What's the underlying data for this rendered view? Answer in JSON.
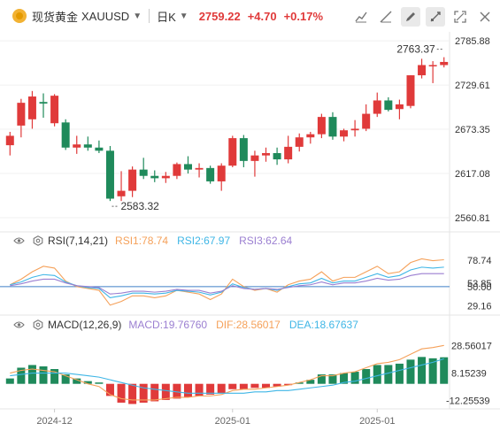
{
  "header": {
    "instrument_name": "现货黄金",
    "symbol": "XAUUSD",
    "period": "日K",
    "last_price": "2759.22",
    "change": "+4.70",
    "change_pct": "+0.17%"
  },
  "toolbar": {
    "icons": [
      "line-tool-icon",
      "chart-type-icon",
      "draw-icon",
      "settings-icon",
      "fullscreen-icon",
      "close-icon"
    ]
  },
  "colors": {
    "up": "#e03a3a",
    "down": "#1f8a5b",
    "rsi1": "#f5a15a",
    "rsi2": "#3fb6e6",
    "rsi3": "#9b7fd1",
    "dif": "#f5a15a",
    "dea": "#3fb6e6"
  },
  "indicators": {
    "rsi": {
      "label": "RSI(7,14,21)",
      "rsi1": "RSI1:78.74",
      "rsi2": "RSI2:67.97",
      "rsi3": "RSI3:62.64"
    },
    "macd": {
      "label": "MACD(12,26,9)",
      "macd": "MACD:19.76760",
      "dif": "DIF:28.56017",
      "dea": "DEA:18.67637"
    }
  },
  "chart_data": [
    {
      "type": "candlestick",
      "title": "XAUUSD",
      "ylim": [
        2545,
        2795
      ],
      "yticks": [
        "2785.88",
        "2729.61",
        "2673.35",
        "2617.08",
        "2560.81"
      ],
      "annotations": {
        "high_label": "2763.37",
        "low_label": "2583.32"
      },
      "xticks": [
        "2024-12",
        "2025-01",
        "2025-01"
      ],
      "candles": [
        {
          "o": 2653,
          "h": 2670,
          "l": 2640,
          "c": 2665
        },
        {
          "o": 2678,
          "h": 2712,
          "l": 2663,
          "c": 2707
        },
        {
          "o": 2686,
          "h": 2722,
          "l": 2674,
          "c": 2715
        },
        {
          "o": 2708,
          "h": 2719,
          "l": 2688,
          "c": 2706
        },
        {
          "o": 2681,
          "h": 2718,
          "l": 2677,
          "c": 2716
        },
        {
          "o": 2682,
          "h": 2686,
          "l": 2647,
          "c": 2650
        },
        {
          "o": 2650,
          "h": 2665,
          "l": 2642,
          "c": 2654
        },
        {
          "o": 2654,
          "h": 2664,
          "l": 2646,
          "c": 2650
        },
        {
          "o": 2650,
          "h": 2659,
          "l": 2643,
          "c": 2646
        },
        {
          "o": 2646,
          "h": 2652,
          "l": 2582,
          "c": 2585
        },
        {
          "o": 2588,
          "h": 2620,
          "l": 2582,
          "c": 2595
        },
        {
          "o": 2595,
          "h": 2626,
          "l": 2587,
          "c": 2622
        },
        {
          "o": 2622,
          "h": 2637,
          "l": 2610,
          "c": 2614
        },
        {
          "o": 2614,
          "h": 2621,
          "l": 2606,
          "c": 2611
        },
        {
          "o": 2611,
          "h": 2619,
          "l": 2605,
          "c": 2614
        },
        {
          "o": 2614,
          "h": 2631,
          "l": 2610,
          "c": 2629
        },
        {
          "o": 2629,
          "h": 2639,
          "l": 2617,
          "c": 2622
        },
        {
          "o": 2622,
          "h": 2630,
          "l": 2612,
          "c": 2624
        },
        {
          "o": 2624,
          "h": 2627,
          "l": 2604,
          "c": 2607
        },
        {
          "o": 2607,
          "h": 2630,
          "l": 2595,
          "c": 2627
        },
        {
          "o": 2627,
          "h": 2665,
          "l": 2625,
          "c": 2662
        },
        {
          "o": 2662,
          "h": 2666,
          "l": 2625,
          "c": 2633
        },
        {
          "o": 2633,
          "h": 2646,
          "l": 2613,
          "c": 2640
        },
        {
          "o": 2640,
          "h": 2650,
          "l": 2632,
          "c": 2643
        },
        {
          "o": 2643,
          "h": 2650,
          "l": 2628,
          "c": 2635
        },
        {
          "o": 2635,
          "h": 2665,
          "l": 2630,
          "c": 2651
        },
        {
          "o": 2651,
          "h": 2668,
          "l": 2645,
          "c": 2663
        },
        {
          "o": 2663,
          "h": 2670,
          "l": 2655,
          "c": 2667
        },
        {
          "o": 2667,
          "h": 2693,
          "l": 2662,
          "c": 2689
        },
        {
          "o": 2689,
          "h": 2695,
          "l": 2660,
          "c": 2664
        },
        {
          "o": 2664,
          "h": 2674,
          "l": 2658,
          "c": 2672
        },
        {
          "o": 2672,
          "h": 2685,
          "l": 2664,
          "c": 2674
        },
        {
          "o": 2674,
          "h": 2705,
          "l": 2671,
          "c": 2693
        },
        {
          "o": 2693,
          "h": 2720,
          "l": 2689,
          "c": 2710
        },
        {
          "o": 2710,
          "h": 2714,
          "l": 2696,
          "c": 2698
        },
        {
          "o": 2699,
          "h": 2711,
          "l": 2686,
          "c": 2705
        },
        {
          "o": 2703,
          "h": 2742,
          "l": 2700,
          "c": 2742
        },
        {
          "o": 2742,
          "h": 2763,
          "l": 2738,
          "c": 2755
        },
        {
          "o": 2755,
          "h": 2760,
          "l": 2732,
          "c": 2755
        },
        {
          "o": 2755,
          "h": 2765,
          "l": 2752,
          "c": 2759
        }
      ]
    },
    {
      "type": "line",
      "title": "RSI(7,14,21)",
      "yticks": [
        "78.74",
        "53.85",
        "50.00",
        "29.16"
      ],
      "ylim": [
        25,
        90
      ],
      "series": [
        {
          "name": "RSI1",
          "values": [
            52,
            58,
            66,
            72,
            70,
            56,
            50,
            48,
            46,
            30,
            34,
            40,
            40,
            38,
            40,
            46,
            44,
            42,
            36,
            42,
            58,
            50,
            46,
            48,
            44,
            52,
            56,
            58,
            66,
            56,
            60,
            60,
            66,
            72,
            64,
            66,
            76,
            80,
            78,
            79
          ]
        },
        {
          "name": "RSI2",
          "values": [
            52,
            55,
            60,
            63,
            62,
            55,
            51,
            49,
            48,
            38,
            40,
            43,
            43,
            42,
            43,
            46,
            45,
            44,
            41,
            44,
            53,
            49,
            47,
            48,
            46,
            50,
            53,
            54,
            59,
            54,
            56,
            56,
            60,
            64,
            60,
            62,
            68,
            71,
            70,
            71
          ]
        },
        {
          "name": "RSI3",
          "values": [
            51,
            53,
            56,
            58,
            58,
            54,
            51,
            50,
            49,
            42,
            43,
            45,
            45,
            44,
            45,
            47,
            46,
            46,
            43,
            45,
            51,
            48,
            47,
            48,
            47,
            49,
            51,
            52,
            55,
            52,
            54,
            54,
            56,
            59,
            57,
            58,
            62,
            64,
            64,
            64
          ]
        }
      ]
    },
    {
      "type": "bar+line",
      "title": "MACD(12,26,9)",
      "yticks": [
        "28.56017",
        "8.15239",
        "-12.25539"
      ],
      "ylim": [
        -16,
        38
      ],
      "histogram": [
        4,
        12,
        14,
        13,
        11,
        7,
        4,
        2,
        1,
        -9,
        -14,
        -15,
        -14,
        -13,
        -12,
        -11,
        -10,
        -9,
        -8,
        -7,
        -4,
        -4,
        -3,
        -3,
        -2,
        -1,
        1,
        3,
        7,
        7,
        8,
        9,
        11,
        14,
        14,
        15,
        18,
        20,
        19,
        19.77
      ],
      "dif": [
        8,
        10,
        11,
        10,
        9,
        6,
        3,
        0,
        -2,
        -8,
        -11,
        -12,
        -12,
        -12,
        -11,
        -10,
        -10,
        -9,
        -9,
        -8,
        -5,
        -4,
        -4,
        -3,
        -2,
        -1,
        1,
        3,
        6,
        6,
        8,
        9,
        12,
        15,
        16,
        18,
        22,
        26,
        27,
        28.56
      ],
      "dea": [
        6,
        7,
        8,
        8,
        8,
        8,
        7,
        6,
        5,
        3,
        1,
        -1,
        -3,
        -4,
        -5,
        -6,
        -7,
        -7,
        -7,
        -7,
        -7,
        -7,
        -6,
        -6,
        -5,
        -5,
        -4,
        -3,
        -2,
        -1,
        1,
        2,
        4,
        6,
        8,
        10,
        12,
        14,
        16,
        18.68
      ]
    }
  ]
}
